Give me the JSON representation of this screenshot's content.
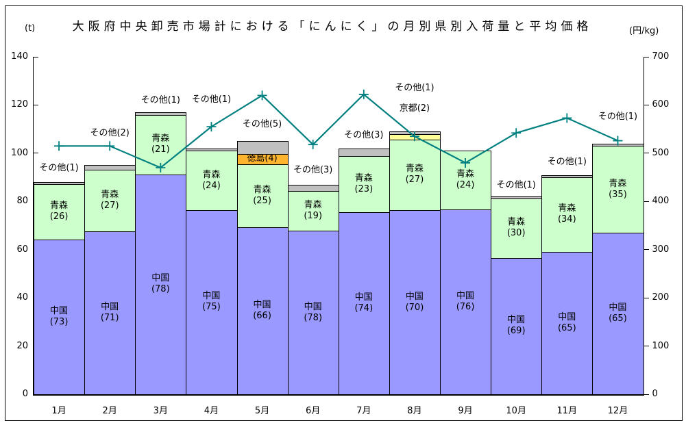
{
  "title": "大阪府中央卸売市場計における「にんにく」の月別県別入荷量と平均価格",
  "left_axis": {
    "unit": "(t)",
    "min": 0,
    "max": 140,
    "step": 20,
    "ticks": [
      "0",
      "20",
      "40",
      "60",
      "80",
      "100",
      "120",
      "140"
    ]
  },
  "right_axis": {
    "unit": "(円/kg)",
    "min": 0,
    "max": 700,
    "step": 100,
    "ticks": [
      "0",
      "100",
      "200",
      "300",
      "400",
      "500",
      "600",
      "700"
    ]
  },
  "chart_data": {
    "type": "bar",
    "subtype": "stacked-bar with overlaid line (combo chart)",
    "categories": [
      "1月",
      "2月",
      "3月",
      "4月",
      "5月",
      "6月",
      "7月",
      "8月",
      "9月",
      "10月",
      "11月",
      "12月"
    ],
    "bar_value_note": "bar height = total arrivals (t); numbers in parentheses are percent shares",
    "bar_totals_t": [
      88,
      95,
      117,
      102,
      105,
      87,
      102,
      109,
      101,
      82,
      91,
      103
    ],
    "bars": [
      {
        "month": "1月",
        "segments": [
          {
            "name": "中国",
            "pct": 73,
            "label": "inside"
          },
          {
            "name": "青森",
            "pct": 26,
            "label": "inside"
          },
          {
            "name": "その他",
            "pct": 1,
            "label": "outside"
          }
        ]
      },
      {
        "month": "2月",
        "segments": [
          {
            "name": "中国",
            "pct": 71,
            "label": "inside"
          },
          {
            "name": "青森",
            "pct": 27,
            "label": "inside"
          },
          {
            "name": "その他",
            "pct": 2,
            "label": "outside"
          }
        ]
      },
      {
        "month": "3月",
        "segments": [
          {
            "name": "中国",
            "pct": 78,
            "label": "inside"
          },
          {
            "name": "青森",
            "pct": 21,
            "label": "inside"
          },
          {
            "name": "その他",
            "pct": 1,
            "label": "outside"
          }
        ]
      },
      {
        "month": "4月",
        "segments": [
          {
            "name": "中国",
            "pct": 75,
            "label": "inside"
          },
          {
            "name": "青森",
            "pct": 24,
            "label": "inside"
          },
          {
            "name": "その他",
            "pct": 1,
            "label": "outside"
          }
        ]
      },
      {
        "month": "5月",
        "segments": [
          {
            "name": "中国",
            "pct": 66,
            "label": "inside"
          },
          {
            "name": "青森",
            "pct": 25,
            "label": "inside"
          },
          {
            "name": "徳島",
            "pct": 4,
            "label": "inside-compact"
          },
          {
            "name": "その他",
            "pct": 5,
            "label": "outside"
          }
        ]
      },
      {
        "month": "6月",
        "segments": [
          {
            "name": "中国",
            "pct": 78,
            "label": "inside"
          },
          {
            "name": "青森",
            "pct": 19,
            "label": "inside"
          },
          {
            "name": "その他",
            "pct": 3,
            "label": "outside"
          }
        ]
      },
      {
        "month": "7月",
        "segments": [
          {
            "name": "中国",
            "pct": 74,
            "label": "inside"
          },
          {
            "name": "青森",
            "pct": 23,
            "label": "inside"
          },
          {
            "name": "その他",
            "pct": 3,
            "label": "outside"
          }
        ]
      },
      {
        "month": "8月",
        "segments": [
          {
            "name": "中国",
            "pct": 70,
            "label": "inside"
          },
          {
            "name": "青森",
            "pct": 27,
            "label": "inside"
          },
          {
            "name": "京都",
            "pct": 2,
            "label": "outside"
          },
          {
            "name": "その他",
            "pct": 1,
            "label": "outside"
          }
        ]
      },
      {
        "month": "9月",
        "segments": [
          {
            "name": "中国",
            "pct": 76,
            "label": "inside"
          },
          {
            "name": "青森",
            "pct": 24,
            "label": "inside"
          }
        ]
      },
      {
        "month": "10月",
        "segments": [
          {
            "name": "中国",
            "pct": 69,
            "label": "inside"
          },
          {
            "name": "青森",
            "pct": 30,
            "label": "inside"
          },
          {
            "name": "その他",
            "pct": 1,
            "label": "outside"
          }
        ]
      },
      {
        "month": "11月",
        "segments": [
          {
            "name": "中国",
            "pct": 65,
            "label": "inside"
          },
          {
            "name": "青森",
            "pct": 34,
            "label": "inside"
          },
          {
            "name": "その他",
            "pct": 1,
            "label": "outside"
          }
        ]
      },
      {
        "month": "12月",
        "segments": [
          {
            "name": "中国",
            "pct": 65,
            "label": "inside"
          },
          {
            "name": "青森",
            "pct": 35,
            "label": "inside"
          },
          {
            "name": "その他",
            "pct": 1,
            "label": "outside"
          }
        ]
      }
    ],
    "line": {
      "name": "平均価格",
      "unit": "円/kg",
      "values": [
        515,
        515,
        470,
        555,
        620,
        518,
        622,
        535,
        480,
        542,
        573,
        526
      ]
    },
    "colors": {
      "中国": "#9999FF",
      "青森": "#CCFFCC",
      "徳島": "#FFB42E",
      "京都": "#FFFF99",
      "その他": "#C0C0C0",
      "line": "#008080",
      "border": "#000000"
    },
    "legend_position": "none",
    "grid": "off",
    "ylim_left": [
      0,
      140
    ],
    "ylim_right": [
      0,
      700
    ]
  }
}
